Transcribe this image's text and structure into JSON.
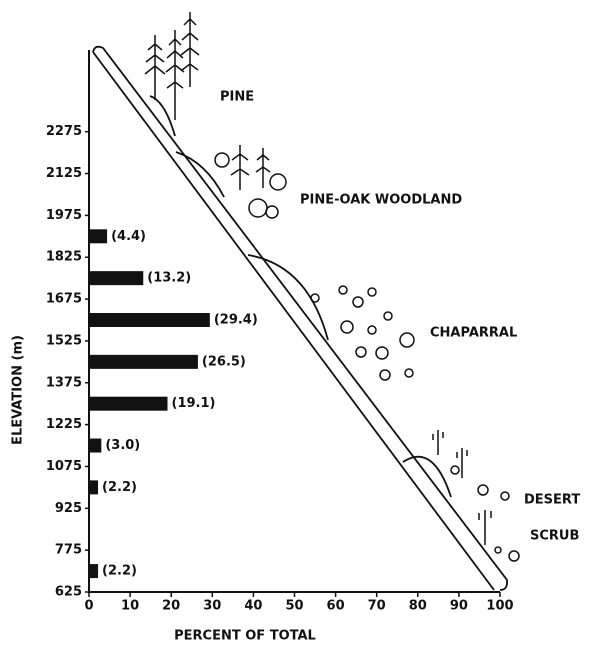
{
  "chart_data": {
    "type": "bar",
    "orientation": "horizontal",
    "y": [
      1900,
      1750,
      1600,
      1450,
      1300,
      1150,
      1000,
      700
    ],
    "values": [
      4.4,
      13.2,
      29.4,
      26.5,
      19.1,
      3.0,
      2.2,
      2.2
    ],
    "value_labels": [
      "(4.4)",
      "(13.2)",
      "(29.4)",
      "(26.5)",
      "(19.1)",
      "(3.0)",
      "(2.2)",
      "(2.2)"
    ],
    "color": "#111111",
    "xlim": [
      0,
      100
    ],
    "xticks": [
      0,
      10,
      20,
      30,
      40,
      50,
      60,
      70,
      80,
      90,
      100
    ],
    "ylim": [
      625,
      2575
    ],
    "yticks": [
      625,
      775,
      925,
      1075,
      1225,
      1375,
      1525,
      1675,
      1825,
      1975,
      2125,
      2275
    ],
    "x_label": "PERCENT OF TOTAL",
    "y_label": "ELEVATION (m)",
    "annotations": [
      "PINE",
      "PINE-OAK WOODLAND",
      "CHAPARRAL",
      "DESERT",
      "SCRUB"
    ]
  }
}
